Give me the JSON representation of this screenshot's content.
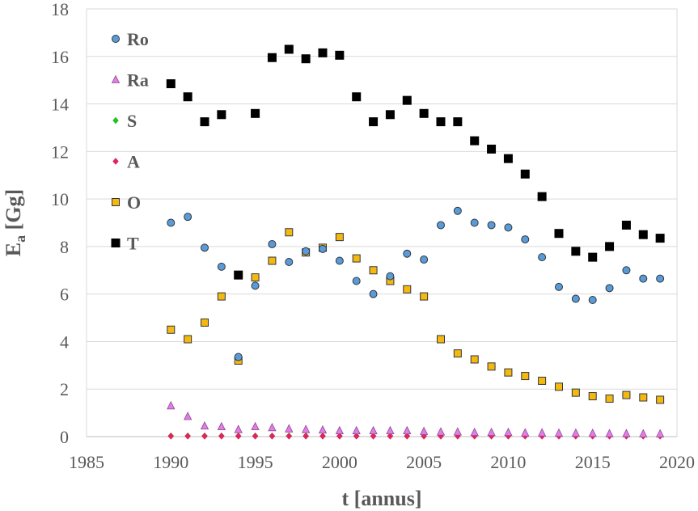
{
  "chart_data": {
    "type": "scatter",
    "title": "",
    "xlabel": "t [annus]",
    "ylabel": {
      "main": "E",
      "sub": "a",
      "rest": " [Gg]"
    },
    "xlim": [
      1985,
      2020
    ],
    "ylim": [
      0,
      18
    ],
    "x_ticks": [
      1985,
      1990,
      1995,
      2000,
      2005,
      2010,
      2015,
      2020
    ],
    "y_ticks": [
      0,
      2,
      4,
      6,
      8,
      10,
      12,
      14,
      16,
      18
    ],
    "grid": "horizontal",
    "legend_position": "top-left",
    "series": [
      {
        "name": "Ro",
        "marker": "circle",
        "color": "#5B9BD5",
        "x": [
          1990,
          1991,
          1992,
          1993,
          1994,
          1995,
          1996,
          1997,
          1998,
          1999,
          2000,
          2001,
          2002,
          2003,
          2004,
          2005,
          2006,
          2007,
          2008,
          2009,
          2010,
          2011,
          2012,
          2013,
          2014,
          2015,
          2016,
          2017,
          2018,
          2019
        ],
        "y": [
          9.0,
          9.25,
          7.95,
          7.15,
          3.35,
          6.35,
          8.1,
          7.35,
          7.8,
          7.9,
          7.4,
          6.55,
          6.0,
          6.75,
          7.7,
          7.45,
          8.9,
          9.5,
          9.0,
          8.9,
          8.8,
          8.3,
          7.55,
          6.3,
          5.8,
          5.75,
          6.25,
          7.0,
          6.65,
          6.65
        ]
      },
      {
        "name": "Ra",
        "marker": "triangle",
        "color": "#E37BE8",
        "x": [
          1990,
          1991,
          1992,
          1993,
          1994,
          1995,
          1996,
          1997,
          1998,
          1999,
          2000,
          2001,
          2002,
          2003,
          2004,
          2005,
          2006,
          2007,
          2008,
          2009,
          2010,
          2011,
          2012,
          2013,
          2014,
          2015,
          2016,
          2017,
          2018,
          2019
        ],
        "y": [
          1.3,
          0.85,
          0.45,
          0.42,
          0.3,
          0.42,
          0.38,
          0.33,
          0.3,
          0.28,
          0.25,
          0.25,
          0.25,
          0.25,
          0.25,
          0.22,
          0.2,
          0.2,
          0.18,
          0.18,
          0.18,
          0.16,
          0.16,
          0.15,
          0.15,
          0.14,
          0.13,
          0.13,
          0.12,
          0.12
        ]
      },
      {
        "name": "S",
        "marker": "diamond",
        "color": "#21C21B",
        "x": [
          1990,
          1991,
          1992,
          1993,
          1994,
          1995,
          1996,
          1997,
          1998,
          1999,
          2000,
          2001,
          2002,
          2003,
          2004,
          2005,
          2006,
          2007,
          2008,
          2009,
          2010,
          2011,
          2012,
          2013,
          2014,
          2015,
          2016,
          2017,
          2018,
          2019
        ],
        "y": [
          0.03,
          0.03,
          0.03,
          0.03,
          0.03,
          0.03,
          0.03,
          0.03,
          0.03,
          0.03,
          0.03,
          0.03,
          0.03,
          0.03,
          0.03,
          0.03,
          0.03,
          0.03,
          0.03,
          0.03,
          0.03,
          0.03,
          0.03,
          0.03,
          0.03,
          0.03,
          0.03,
          0.03,
          0.03,
          0.03
        ]
      },
      {
        "name": "A",
        "marker": "diamond",
        "color": "#E0245E",
        "x": [
          1990,
          1991,
          1992,
          1993,
          1994,
          1995,
          1996,
          1997,
          1998,
          1999,
          2000,
          2001,
          2002,
          2003,
          2004,
          2005,
          2006,
          2007,
          2008,
          2009,
          2010,
          2011,
          2012,
          2013,
          2014,
          2015,
          2016,
          2017,
          2018,
          2019
        ],
        "y": [
          0.02,
          0.02,
          0.02,
          0.02,
          0.02,
          0.02,
          0.02,
          0.02,
          0.02,
          0.02,
          0.02,
          0.02,
          0.02,
          0.02,
          0.02,
          0.02,
          0.02,
          0.02,
          0.02,
          0.02,
          0.02,
          0.02,
          0.02,
          0.02,
          0.02,
          0.02,
          0.02,
          0.02,
          0.02,
          0.02
        ]
      },
      {
        "name": "O",
        "marker": "square",
        "color": "#F5B80F",
        "x": [
          1990,
          1991,
          1992,
          1993,
          1994,
          1995,
          1996,
          1997,
          1998,
          1999,
          2000,
          2001,
          2002,
          2003,
          2004,
          2005,
          2006,
          2007,
          2008,
          2009,
          2010,
          2011,
          2012,
          2013,
          2014,
          2015,
          2016,
          2017,
          2018,
          2019
        ],
        "y": [
          4.5,
          4.1,
          4.8,
          5.9,
          3.2,
          6.7,
          7.4,
          8.6,
          7.75,
          7.95,
          8.4,
          7.5,
          7.0,
          6.55,
          6.2,
          5.9,
          4.1,
          3.5,
          3.25,
          2.95,
          2.7,
          2.55,
          2.35,
          2.1,
          1.85,
          1.7,
          1.6,
          1.75,
          1.65,
          1.55
        ]
      },
      {
        "name": "T",
        "marker": "square",
        "color": "#000000",
        "x": [
          1990,
          1991,
          1992,
          1993,
          1994,
          1995,
          1996,
          1997,
          1998,
          1999,
          2000,
          2001,
          2002,
          2003,
          2004,
          2005,
          2006,
          2007,
          2008,
          2009,
          2010,
          2011,
          2012,
          2013,
          2014,
          2015,
          2016,
          2017,
          2018,
          2019
        ],
        "y": [
          14.85,
          14.3,
          13.25,
          13.55,
          6.8,
          13.6,
          15.95,
          16.3,
          15.9,
          16.15,
          16.05,
          14.3,
          13.25,
          13.55,
          14.15,
          13.6,
          13.25,
          13.25,
          12.45,
          12.1,
          11.7,
          11.05,
          10.1,
          8.55,
          7.8,
          7.55,
          8.0,
          8.9,
          8.5,
          8.35
        ]
      }
    ]
  }
}
